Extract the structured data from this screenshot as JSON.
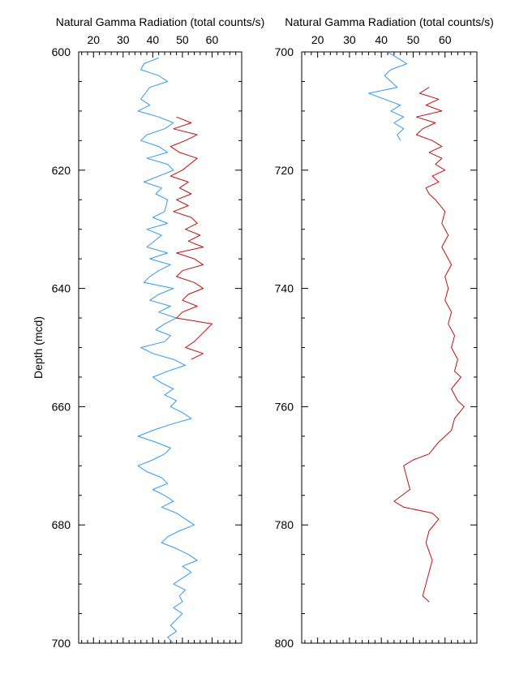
{
  "chart_data": [
    {
      "type": "line",
      "title": "Natural Gamma Radiation (total counts/s)",
      "ylabel": "Depth (mcd)",
      "xlim": [
        15,
        70
      ],
      "ylim": [
        600,
        700
      ],
      "y_inverted": true,
      "x_ticks": [
        20,
        30,
        40,
        50,
        60
      ],
      "y_ticks": [
        600,
        620,
        640,
        660,
        680,
        700
      ],
      "series": [
        {
          "color": "#3399ee",
          "points": [
            [
              42,
              601
            ],
            [
              37,
              602
            ],
            [
              36,
              603
            ],
            [
              42,
              604
            ],
            [
              45,
              605
            ],
            [
              39,
              606
            ],
            [
              36,
              608
            ],
            [
              39,
              609
            ],
            [
              35,
              610
            ],
            [
              42,
              611
            ],
            [
              47,
              612
            ],
            [
              44,
              613
            ],
            [
              38,
              614
            ],
            [
              36,
              615
            ],
            [
              42,
              616
            ],
            [
              45,
              617
            ],
            [
              38,
              618
            ],
            [
              45,
              619
            ],
            [
              47,
              620
            ],
            [
              42,
              621
            ],
            [
              37,
              622
            ],
            [
              43,
              623
            ],
            [
              41,
              624
            ],
            [
              45,
              625
            ],
            [
              44,
              627
            ],
            [
              40,
              628
            ],
            [
              45,
              629
            ],
            [
              38,
              630
            ],
            [
              43,
              631
            ],
            [
              38,
              633
            ],
            [
              45,
              634
            ],
            [
              39,
              635
            ],
            [
              46,
              636
            ],
            [
              42,
              637
            ],
            [
              39,
              638
            ],
            [
              37,
              639
            ],
            [
              47,
              640
            ],
            [
              42,
              641
            ],
            [
              39,
              642
            ],
            [
              46,
              643
            ],
            [
              42,
              644
            ],
            [
              48,
              645
            ],
            [
              44,
              646
            ],
            [
              41,
              647
            ],
            [
              46,
              648
            ],
            [
              44,
              649
            ],
            [
              36,
              650
            ],
            [
              40,
              651
            ],
            [
              47,
              652
            ],
            [
              51,
              653
            ],
            [
              45,
              654
            ],
            [
              40,
              655
            ],
            [
              43,
              656
            ],
            [
              47,
              657
            ],
            [
              44,
              658
            ],
            [
              48,
              659
            ],
            [
              46,
              660
            ],
            [
              50,
              661
            ],
            [
              53,
              662
            ],
            [
              46,
              663
            ],
            [
              40,
              664
            ],
            [
              35,
              665
            ],
            [
              41,
              666
            ],
            [
              46,
              667
            ],
            [
              44,
              668
            ],
            [
              40,
              669
            ],
            [
              35,
              670
            ],
            [
              38,
              671
            ],
            [
              43,
              672
            ],
            [
              45,
              673
            ],
            [
              40,
              674
            ],
            [
              44,
              675
            ],
            [
              47,
              676
            ],
            [
              43,
              677
            ],
            [
              48,
              678
            ],
            [
              51,
              679
            ],
            [
              54,
              680
            ],
            [
              49,
              681
            ],
            [
              45,
              682
            ],
            [
              43,
              683
            ],
            [
              48,
              684
            ],
            [
              52,
              685
            ],
            [
              55,
              686
            ],
            [
              50,
              687
            ],
            [
              53,
              688
            ],
            [
              50,
              689
            ],
            [
              47,
              690
            ],
            [
              51,
              691
            ],
            [
              49,
              692
            ],
            [
              50,
              693
            ],
            [
              47,
              694
            ],
            [
              50,
              695
            ],
            [
              48,
              696
            ],
            [
              46,
              697
            ],
            [
              48,
              698
            ],
            [
              45,
              699
            ],
            [
              47,
              700
            ]
          ]
        },
        {
          "color": "#bb1111",
          "points": [
            [
              48,
              611
            ],
            [
              53,
              612
            ],
            [
              47,
              613
            ],
            [
              55,
              614
            ],
            [
              51,
              615
            ],
            [
              46,
              616
            ],
            [
              49,
              617
            ],
            [
              55,
              618
            ],
            [
              50,
              620
            ],
            [
              46,
              621
            ],
            [
              52,
              622
            ],
            [
              49,
              623
            ],
            [
              53,
              624
            ],
            [
              48,
              625
            ],
            [
              52,
              626
            ],
            [
              47,
              627
            ],
            [
              53,
              628
            ],
            [
              55,
              629
            ],
            [
              51,
              630
            ],
            [
              56,
              631
            ],
            [
              52,
              632
            ],
            [
              57,
              633
            ],
            [
              48,
              634
            ],
            [
              54,
              635
            ],
            [
              57,
              636
            ],
            [
              50,
              637
            ],
            [
              48,
              638
            ],
            [
              54,
              639
            ],
            [
              57,
              640
            ],
            [
              52,
              641
            ],
            [
              50,
              642
            ],
            [
              55,
              643
            ],
            [
              50,
              644
            ],
            [
              48,
              645
            ],
            [
              60,
              646
            ],
            [
              54,
              649
            ],
            [
              51,
              650
            ],
            [
              57,
              651
            ],
            [
              53,
              652
            ]
          ]
        }
      ]
    },
    {
      "type": "line",
      "title": "Natural Gamma Radiation (total counts/s)",
      "ylabel": "",
      "xlim": [
        15,
        70
      ],
      "ylim": [
        700,
        800
      ],
      "y_inverted": true,
      "x_ticks": [
        20,
        30,
        40,
        50,
        60
      ],
      "y_ticks": [
        700,
        720,
        740,
        760,
        780,
        800
      ],
      "series": [
        {
          "color": "#3399ee",
          "points": [
            [
              42,
              700
            ],
            [
              45,
              701
            ],
            [
              48,
              702
            ],
            [
              43,
              703
            ],
            [
              41,
              704
            ],
            [
              45,
              706
            ],
            [
              36,
              707
            ],
            [
              41,
              708
            ],
            [
              46,
              709
            ],
            [
              43,
              710
            ],
            [
              47,
              711
            ],
            [
              44,
              712
            ],
            [
              47,
              713
            ],
            [
              45,
              714
            ],
            [
              46,
              715
            ]
          ]
        },
        {
          "color": "#bb1111",
          "points": [
            [
              55,
              706
            ],
            [
              52,
              707
            ],
            [
              58,
              708
            ],
            [
              54,
              709
            ],
            [
              59,
              710
            ],
            [
              51,
              711
            ],
            [
              57,
              712
            ],
            [
              53,
              713
            ],
            [
              51,
              714
            ],
            [
              56,
              715
            ],
            [
              59,
              716
            ],
            [
              55,
              717
            ],
            [
              59,
              718
            ],
            [
              57,
              719
            ],
            [
              60,
              720
            ],
            [
              56,
              721
            ],
            [
              58,
              722
            ],
            [
              54,
              723
            ],
            [
              55,
              724
            ],
            [
              57,
              725
            ],
            [
              60,
              727
            ],
            [
              59,
              729
            ],
            [
              61,
              731
            ],
            [
              59,
              733
            ],
            [
              62,
              736
            ],
            [
              60,
              738
            ],
            [
              61,
              740
            ],
            [
              60,
              742
            ],
            [
              62,
              744
            ],
            [
              61,
              746
            ],
            [
              63,
              748
            ],
            [
              62,
              750
            ],
            [
              64,
              752
            ],
            [
              63,
              754
            ],
            [
              65,
              755
            ],
            [
              62,
              757
            ],
            [
              64,
              759
            ],
            [
              66,
              760
            ],
            [
              63,
              762
            ],
            [
              62,
              764
            ],
            [
              58,
              766
            ],
            [
              55,
              768
            ],
            [
              50,
              769
            ],
            [
              47,
              770
            ],
            [
              49,
              774
            ],
            [
              44,
              776
            ],
            [
              47,
              777
            ],
            [
              56,
              778
            ],
            [
              58,
              779
            ],
            [
              55,
              781
            ],
            [
              54,
              783
            ],
            [
              56,
              786
            ],
            [
              53,
              792
            ],
            [
              55,
              793
            ]
          ]
        }
      ]
    }
  ]
}
